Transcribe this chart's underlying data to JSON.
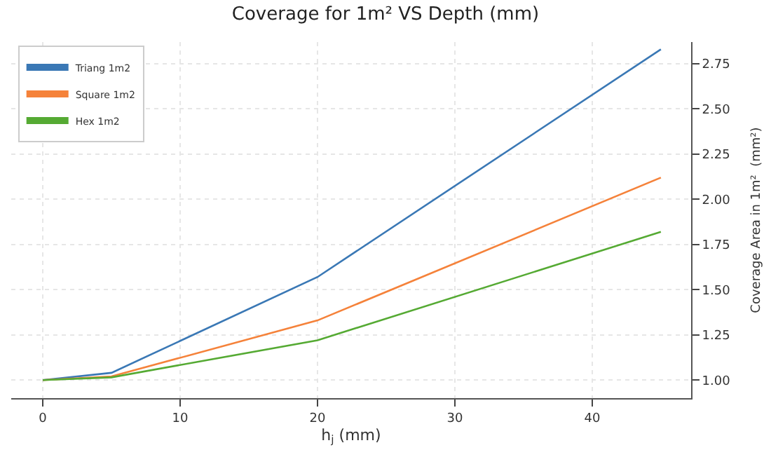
{
  "chart_data": {
    "type": "line",
    "title": "Coverage for 1m² VS Depth (mm)",
    "xlabel": "h$_{j}$ (mm)",
    "ylabel": "Coverage Area in 1m²  (mm²)",
    "x": [
      0,
      5,
      20,
      45
    ],
    "series": [
      {
        "name": "Triang 1m2",
        "color": "#3a78b5",
        "values": [
          1.0,
          1.04,
          1.57,
          2.83
        ]
      },
      {
        "name": "Square 1m2",
        "color": "#f5823a",
        "values": [
          1.0,
          1.02,
          1.33,
          2.12
        ]
      },
      {
        "name": "Hex 1m2",
        "color": "#55aa33",
        "values": [
          1.0,
          1.015,
          1.22,
          1.82
        ]
      }
    ],
    "xlim": [
      -2.3,
      47.2
    ],
    "xticks": [
      0,
      10,
      20,
      30,
      40
    ],
    "ylim": [
      0.9,
      2.87
    ],
    "yticks": [
      {
        "value": 1,
        "label": "1.00"
      },
      {
        "value": 1.25,
        "label": "1.25"
      },
      {
        "value": 1.5,
        "label": "1.50"
      },
      {
        "value": 1.75,
        "label": "1.75"
      },
      {
        "value": 2,
        "label": "2.00"
      },
      {
        "value": 2.25,
        "label": "2.25"
      },
      {
        "value": 2.5,
        "label": "2.50"
      },
      {
        "value": 2.75,
        "label": "2.75"
      }
    ],
    "grid": true,
    "legend": "top left",
    "line_style": "solid",
    "marker": "none"
  }
}
